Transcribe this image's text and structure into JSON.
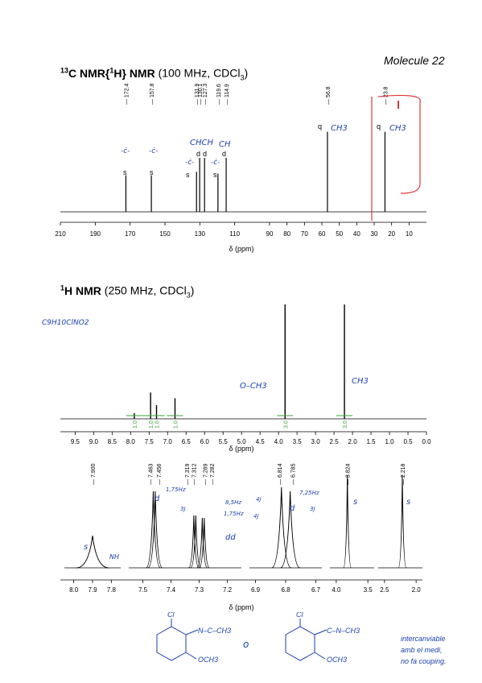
{
  "molecule_label": "Molecule 22",
  "c13": {
    "title_bold": "13C NMR{1H} NMR",
    "title_sup1": "13",
    "title_mid": "C NMR{",
    "title_sup2": "1",
    "title_end": "H} NMR",
    "title_rest": "(100 MHz, CDCl",
    "title_sub": "3",
    "title_close": ")",
    "xlabel": "δ (ppm)"
  },
  "h1": {
    "title_sup": "1",
    "title_bold": "H NMR",
    "title_rest": "(250 MHz, CDCl",
    "title_sub": "3",
    "title_close": ")",
    "xlabel": "δ (ppm)",
    "zoom_xlabel": "δ (ppm)"
  },
  "annotations": {
    "formula": "C9H10ClNO2",
    "c13_q1": "q",
    "c13_q1_label": "CH3",
    "c13_q2": "q",
    "c13_q2_label": "CH3",
    "c13_chch": "CHCH",
    "c13_ch": "CH",
    "c13_s": "s",
    "c13_d": "d",
    "h1_och3": "O–CH3",
    "h1_ch3": "CH3",
    "zoom_nh": "NH",
    "zoom_s": "s",
    "zoom_d": "d",
    "zoom_dd": "dd",
    "zoom_j1": "1,75Hz",
    "zoom_j2": "3J",
    "zoom_j3": "8,5Hz",
    "zoom_j4": "1,75Hz",
    "zoom_j5": "4J",
    "zoom_j6": "7,25Hz",
    "zoom_j7": "3J",
    "zoom_j8": "3J",
    "note1": "intercanviable",
    "note2": "amb el medi,",
    "note3": "no fa couping."
  },
  "chart_data": [
    {
      "type": "line",
      "title": "13C NMR{1H} NMR (100 MHz, CDCl3)",
      "xlabel": "δ (ppm)",
      "xlim": [
        210,
        0
      ],
      "xticks": [
        210,
        190,
        170,
        150,
        130,
        110,
        90,
        80,
        70,
        60,
        50,
        40,
        30,
        20,
        10
      ],
      "peaks": [
        {
          "ppm": 172.4,
          "label": "172.4",
          "intensity": 0.42,
          "mult": "s"
        },
        {
          "ppm": 157.8,
          "label": "157.8",
          "intensity": 0.42,
          "mult": "s"
        },
        {
          "ppm": 131.9,
          "label": "131.9",
          "intensity": 0.46,
          "mult": "s"
        },
        {
          "ppm": 130.1,
          "label": "130.1",
          "intensity": 0.62,
          "mult": "d"
        },
        {
          "ppm": 127.3,
          "label": "127.3",
          "intensity": 0.62,
          "mult": "d"
        },
        {
          "ppm": 119.6,
          "label": "119.6",
          "intensity": 0.44,
          "mult": "s"
        },
        {
          "ppm": 114.9,
          "label": "114.9",
          "intensity": 0.62,
          "mult": "d"
        },
        {
          "ppm": 56.8,
          "label": "56.8",
          "intensity": 0.92,
          "mult": "q"
        },
        {
          "ppm": 23.8,
          "label": "23.8",
          "intensity": 0.92,
          "mult": "q"
        }
      ]
    },
    {
      "type": "line",
      "title": "1H NMR (250 MHz, CDCl3)",
      "xlabel": "δ (ppm)",
      "xlim": [
        9.9,
        0.0
      ],
      "xticks": [
        "9.5",
        "9.0",
        "8.5",
        "8.0",
        "7.5",
        "7.0",
        "6.5",
        "6.0",
        "5.5",
        "5.0",
        "4.5",
        "4.0",
        "3.5",
        "3.0",
        "2.5",
        "2.0",
        "1.5",
        "1.0",
        "0.5",
        "0.0"
      ],
      "peaks": [
        {
          "ppm": 7.9,
          "intensity": 0.05
        },
        {
          "ppm": 7.46,
          "intensity": 0.23
        },
        {
          "ppm": 7.3,
          "intensity": 0.12
        },
        {
          "ppm": 6.8,
          "intensity": 0.18
        },
        {
          "ppm": 3.824,
          "intensity": 1.0
        },
        {
          "ppm": 2.218,
          "intensity": 1.0
        }
      ],
      "integrals": [
        {
          "ppm": 7.9,
          "value": "1.0"
        },
        {
          "ppm": 7.46,
          "value": "1.0"
        },
        {
          "ppm": 7.3,
          "value": "1.0"
        },
        {
          "ppm": 6.8,
          "value": "1.0"
        },
        {
          "ppm": 3.824,
          "value": "3.0"
        },
        {
          "ppm": 2.218,
          "value": "3.0"
        }
      ]
    },
    {
      "type": "line",
      "title": "",
      "xlabel": "δ (ppm)",
      "xticks": [
        "8.0",
        "7.9",
        "7.8",
        "7.5",
        "7.4",
        "7.3",
        "7.2",
        "6.9",
        "6.8",
        "6.7",
        "4.0",
        "3.5",
        "2.5",
        "2.0"
      ],
      "peak_labels": [
        "7.900",
        "7.463",
        "7.456",
        "7.319",
        "7.312",
        "7.289",
        "7.282",
        "6.814",
        "6.785",
        "3.824",
        "2.218"
      ]
    }
  ]
}
